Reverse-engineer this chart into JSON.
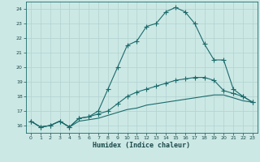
{
  "xlabel": "Humidex (Indice chaleur)",
  "bg_color": "#cce8e5",
  "grid_color": "#b5d5d2",
  "line_color": "#1a6b6b",
  "xlim": [
    -0.5,
    23.5
  ],
  "ylim": [
    15.5,
    24.5
  ],
  "xticks": [
    0,
    1,
    2,
    3,
    4,
    5,
    6,
    7,
    8,
    9,
    10,
    11,
    12,
    13,
    14,
    15,
    16,
    17,
    18,
    19,
    20,
    21,
    22,
    23
  ],
  "yticks": [
    16,
    17,
    18,
    19,
    20,
    21,
    22,
    23,
    24
  ],
  "line1_x": [
    0,
    1,
    2,
    3,
    4,
    5,
    6,
    7,
    8,
    9,
    10,
    11,
    12,
    13,
    14,
    15,
    16,
    17,
    18,
    19,
    20,
    21,
    22,
    23
  ],
  "line1_y": [
    16.3,
    15.9,
    16.0,
    16.3,
    15.9,
    16.5,
    16.6,
    17.0,
    18.5,
    20.0,
    21.5,
    21.8,
    22.8,
    23.0,
    23.8,
    24.1,
    23.8,
    23.0,
    21.6,
    20.5,
    20.5,
    18.5,
    18.0,
    17.6
  ],
  "line2_x": [
    0,
    1,
    2,
    3,
    4,
    5,
    6,
    7,
    8,
    9,
    10,
    11,
    12,
    13,
    14,
    15,
    16,
    17,
    18,
    19,
    20,
    21,
    22,
    23
  ],
  "line2_y": [
    16.3,
    15.9,
    16.0,
    16.3,
    15.9,
    16.5,
    16.6,
    16.8,
    17.0,
    17.5,
    18.0,
    18.3,
    18.5,
    18.7,
    18.9,
    19.1,
    19.2,
    19.3,
    19.3,
    19.1,
    18.4,
    18.2,
    18.0,
    17.6
  ],
  "line3_x": [
    0,
    1,
    2,
    3,
    4,
    5,
    6,
    7,
    8,
    9,
    10,
    11,
    12,
    13,
    14,
    15,
    16,
    17,
    18,
    19,
    20,
    21,
    22,
    23
  ],
  "line3_y": [
    16.3,
    15.9,
    16.0,
    16.3,
    15.9,
    16.3,
    16.4,
    16.5,
    16.7,
    16.9,
    17.1,
    17.2,
    17.4,
    17.5,
    17.6,
    17.7,
    17.8,
    17.9,
    18.0,
    18.1,
    18.1,
    17.9,
    17.7,
    17.6
  ]
}
